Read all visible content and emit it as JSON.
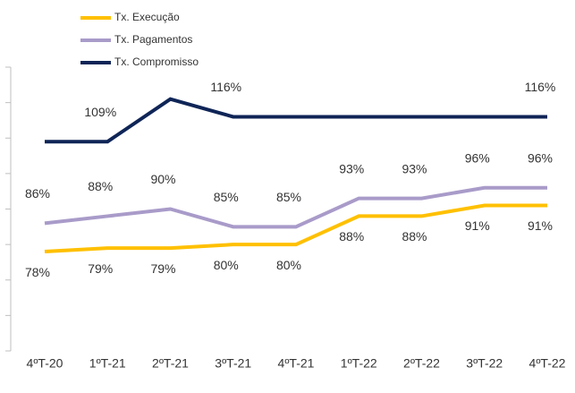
{
  "chart_data": {
    "type": "line",
    "categories": [
      "4ºT-20",
      "1ºT-21",
      "2ºT-21",
      "3ºT-21",
      "4ºT-21",
      "1ºT-22",
      "2ºT-22",
      "3ºT-22",
      "4ºT-22"
    ],
    "series": [
      {
        "name": "Tx. Execução",
        "color": "#FFC000",
        "values": [
          78,
          79,
          79,
          80,
          80,
          88,
          88,
          91,
          91
        ],
        "value_labels": [
          "78%",
          "79%",
          "79%",
          "80%",
          "80%",
          "88%",
          "88%",
          "91%",
          "91%"
        ],
        "label_position": "below"
      },
      {
        "name": "Tx. Pagamentos",
        "color": "#A99BC9",
        "values": [
          86,
          88,
          90,
          85,
          85,
          93,
          93,
          96,
          96
        ],
        "value_labels": [
          "86%",
          "88%",
          "90%",
          "85%",
          "85%",
          "93%",
          "93%",
          "96%",
          "96%"
        ],
        "label_position": "above"
      },
      {
        "name": "Tx. Compromisso",
        "color": "#0F2557",
        "values": [
          109,
          109,
          121,
          116,
          116,
          116,
          116,
          116,
          116
        ],
        "value_labels": [
          null,
          "109%",
          null,
          "116%",
          null,
          null,
          null,
          null,
          "116%"
        ],
        "label_position": "above"
      }
    ],
    "ylim": [
      50,
      130
    ],
    "yticks": [
      50,
      60,
      70,
      80,
      90,
      100,
      110,
      120,
      130
    ],
    "grid": false,
    "legend": "top"
  }
}
